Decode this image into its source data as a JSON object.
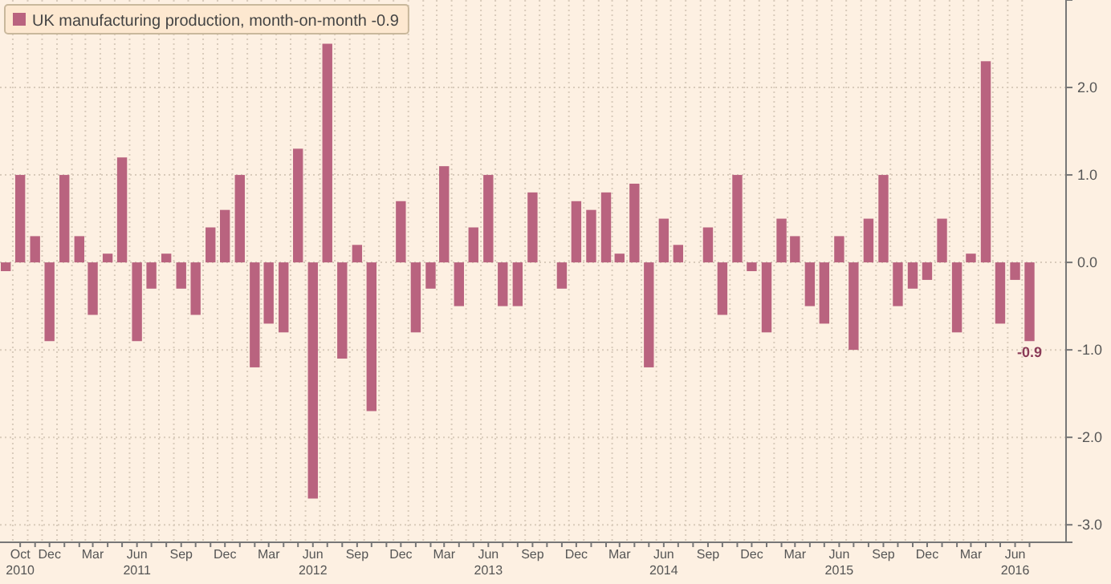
{
  "chart_data": {
    "type": "bar",
    "x": [
      "2010-09",
      "2010-10",
      "2010-11",
      "2010-12",
      "2011-01",
      "2011-02",
      "2011-03",
      "2011-04",
      "2011-05",
      "2011-06",
      "2011-07",
      "2011-08",
      "2011-09",
      "2011-10",
      "2011-11",
      "2011-12",
      "2012-01",
      "2012-02",
      "2012-03",
      "2012-04",
      "2012-05",
      "2012-06",
      "2012-07",
      "2012-08",
      "2012-09",
      "2012-10",
      "2012-11",
      "2012-12",
      "2013-01",
      "2013-02",
      "2013-03",
      "2013-04",
      "2013-05",
      "2013-06",
      "2013-07",
      "2013-08",
      "2013-09",
      "2013-10",
      "2013-11",
      "2013-12",
      "2014-01",
      "2014-02",
      "2014-03",
      "2014-04",
      "2014-05",
      "2014-06",
      "2014-07",
      "2014-08",
      "2014-09",
      "2014-10",
      "2014-11",
      "2014-12",
      "2015-01",
      "2015-02",
      "2015-03",
      "2015-04",
      "2015-05",
      "2015-06",
      "2015-07",
      "2015-08",
      "2015-09",
      "2015-10",
      "2015-11",
      "2015-12",
      "2016-01",
      "2016-02",
      "2016-03",
      "2016-04",
      "2016-05",
      "2016-06",
      "2016-07"
    ],
    "series": [
      {
        "name": "UK manufacturing production, month-on-month -0.9",
        "color": "#b9637f",
        "values": [
          -0.1,
          1.0,
          0.3,
          -0.9,
          1.0,
          0.3,
          -0.6,
          0.1,
          1.2,
          -0.9,
          -0.3,
          0.1,
          -0.3,
          -0.6,
          0.4,
          0.6,
          1.0,
          -1.2,
          -0.7,
          -0.8,
          1.3,
          -2.7,
          2.5,
          -1.1,
          0.2,
          -1.7,
          0,
          0.7,
          -0.8,
          -0.3,
          1.1,
          -0.5,
          0.4,
          1.0,
          -0.5,
          -0.5,
          0.8,
          0,
          -0.3,
          0.7,
          0.6,
          0.8,
          0.1,
          0.9,
          -1.2,
          0.5,
          0.2,
          0,
          0.4,
          -0.6,
          1.0,
          -0.1,
          -0.8,
          0.5,
          0.3,
          -0.5,
          -0.7,
          0.3,
          -1.0,
          0.5,
          1.0,
          -0.5,
          -0.3,
          -0.2,
          0.5,
          -0.8,
          0.1,
          2.3,
          -0.7,
          -0.2,
          -0.9
        ],
        "value_labels": [
          null,
          null,
          null,
          null,
          null,
          null,
          null,
          null,
          null,
          null,
          null,
          null,
          null,
          null,
          null,
          null,
          null,
          null,
          null,
          null,
          null,
          null,
          null,
          null,
          null,
          null,
          null,
          null,
          null,
          null,
          null,
          null,
          null,
          null,
          null,
          null,
          null,
          null,
          null,
          null,
          null,
          null,
          null,
          null,
          null,
          null,
          null,
          null,
          null,
          null,
          null,
          null,
          null,
          null,
          null,
          null,
          null,
          null,
          null,
          null,
          null,
          null,
          null,
          null,
          null,
          null,
          null,
          null,
          null,
          null,
          "-0.9"
        ]
      }
    ],
    "xlim": [
      "2010-08-20",
      "2016-09-15"
    ],
    "xticks": [
      {
        "value": "2010-10",
        "label": "Oct\n2010"
      },
      {
        "value": "2010-11",
        "label": null
      },
      {
        "value": "2010-12",
        "label": "Dec"
      },
      {
        "value": "2011-01",
        "label": null
      },
      {
        "value": "2011-02",
        "label": null
      },
      {
        "value": "2011-03",
        "label": "Mar"
      },
      {
        "value": "2011-04",
        "label": null
      },
      {
        "value": "2011-05",
        "label": null
      },
      {
        "value": "2011-06",
        "label": "Jun\n2011"
      },
      {
        "value": "2011-07",
        "label": null
      },
      {
        "value": "2011-08",
        "label": null
      },
      {
        "value": "2011-09",
        "label": "Sep"
      },
      {
        "value": "2011-10",
        "label": null
      },
      {
        "value": "2011-11",
        "label": null
      },
      {
        "value": "2011-12",
        "label": "Dec"
      },
      {
        "value": "2012-01",
        "label": null
      },
      {
        "value": "2012-02",
        "label": null
      },
      {
        "value": "2012-03",
        "label": "Mar"
      },
      {
        "value": "2012-04",
        "label": null
      },
      {
        "value": "2012-05",
        "label": null
      },
      {
        "value": "2012-06",
        "label": "Jun\n2012"
      },
      {
        "value": "2012-07",
        "label": null
      },
      {
        "value": "2012-08",
        "label": null
      },
      {
        "value": "2012-09",
        "label": "Sep"
      },
      {
        "value": "2012-10",
        "label": null
      },
      {
        "value": "2012-11",
        "label": null
      },
      {
        "value": "2012-12",
        "label": "Dec"
      },
      {
        "value": "2013-01",
        "label": null
      },
      {
        "value": "2013-02",
        "label": null
      },
      {
        "value": "2013-03",
        "label": "Mar"
      },
      {
        "value": "2013-04",
        "label": null
      },
      {
        "value": "2013-05",
        "label": null
      },
      {
        "value": "2013-06",
        "label": "Jun\n2013"
      },
      {
        "value": "2013-07",
        "label": null
      },
      {
        "value": "2013-08",
        "label": null
      },
      {
        "value": "2013-09",
        "label": "Sep"
      },
      {
        "value": "2013-10",
        "label": null
      },
      {
        "value": "2013-11",
        "label": null
      },
      {
        "value": "2013-12",
        "label": "Dec"
      },
      {
        "value": "2014-01",
        "label": null
      },
      {
        "value": "2014-02",
        "label": null
      },
      {
        "value": "2014-03",
        "label": "Mar"
      },
      {
        "value": "2014-04",
        "label": null
      },
      {
        "value": "2014-05",
        "label": null
      },
      {
        "value": "2014-06",
        "label": "Jun\n2014"
      },
      {
        "value": "2014-07",
        "label": null
      },
      {
        "value": "2014-08",
        "label": null
      },
      {
        "value": "2014-09",
        "label": "Sep"
      },
      {
        "value": "2014-10",
        "label": null
      },
      {
        "value": "2014-11",
        "label": null
      },
      {
        "value": "2014-12",
        "label": "Dec"
      },
      {
        "value": "2015-01",
        "label": null
      },
      {
        "value": "2015-02",
        "label": null
      },
      {
        "value": "2015-03",
        "label": "Mar"
      },
      {
        "value": "2015-04",
        "label": null
      },
      {
        "value": "2015-05",
        "label": null
      },
      {
        "value": "2015-06",
        "label": "Jun\n2015"
      },
      {
        "value": "2015-07",
        "label": null
      },
      {
        "value": "2015-08",
        "label": null
      },
      {
        "value": "2015-09",
        "label": "Sep"
      },
      {
        "value": "2015-10",
        "label": null
      },
      {
        "value": "2015-11",
        "label": null
      },
      {
        "value": "2015-12",
        "label": "Dec"
      },
      {
        "value": "2016-01",
        "label": null
      },
      {
        "value": "2016-02",
        "label": null
      },
      {
        "value": "2016-03",
        "label": "Mar"
      },
      {
        "value": "2016-04",
        "label": null
      },
      {
        "value": "2016-05",
        "label": null
      },
      {
        "value": "2016-06",
        "label": "Jun\n2016"
      },
      {
        "value": "2016-07",
        "label": null
      }
    ],
    "ylim": [
      -3.2,
      3.0
    ],
    "yticks": [
      {
        "value": 2,
        "label": "2.0"
      },
      {
        "value": 1,
        "label": "1.0"
      },
      {
        "value": 0,
        "label": "0.0"
      },
      {
        "value": -1,
        "label": "-1.0"
      },
      {
        "value": -2,
        "label": "-2.0"
      },
      {
        "value": -3,
        "label": "-3.0"
      }
    ],
    "grid": true,
    "legend": "top left"
  }
}
